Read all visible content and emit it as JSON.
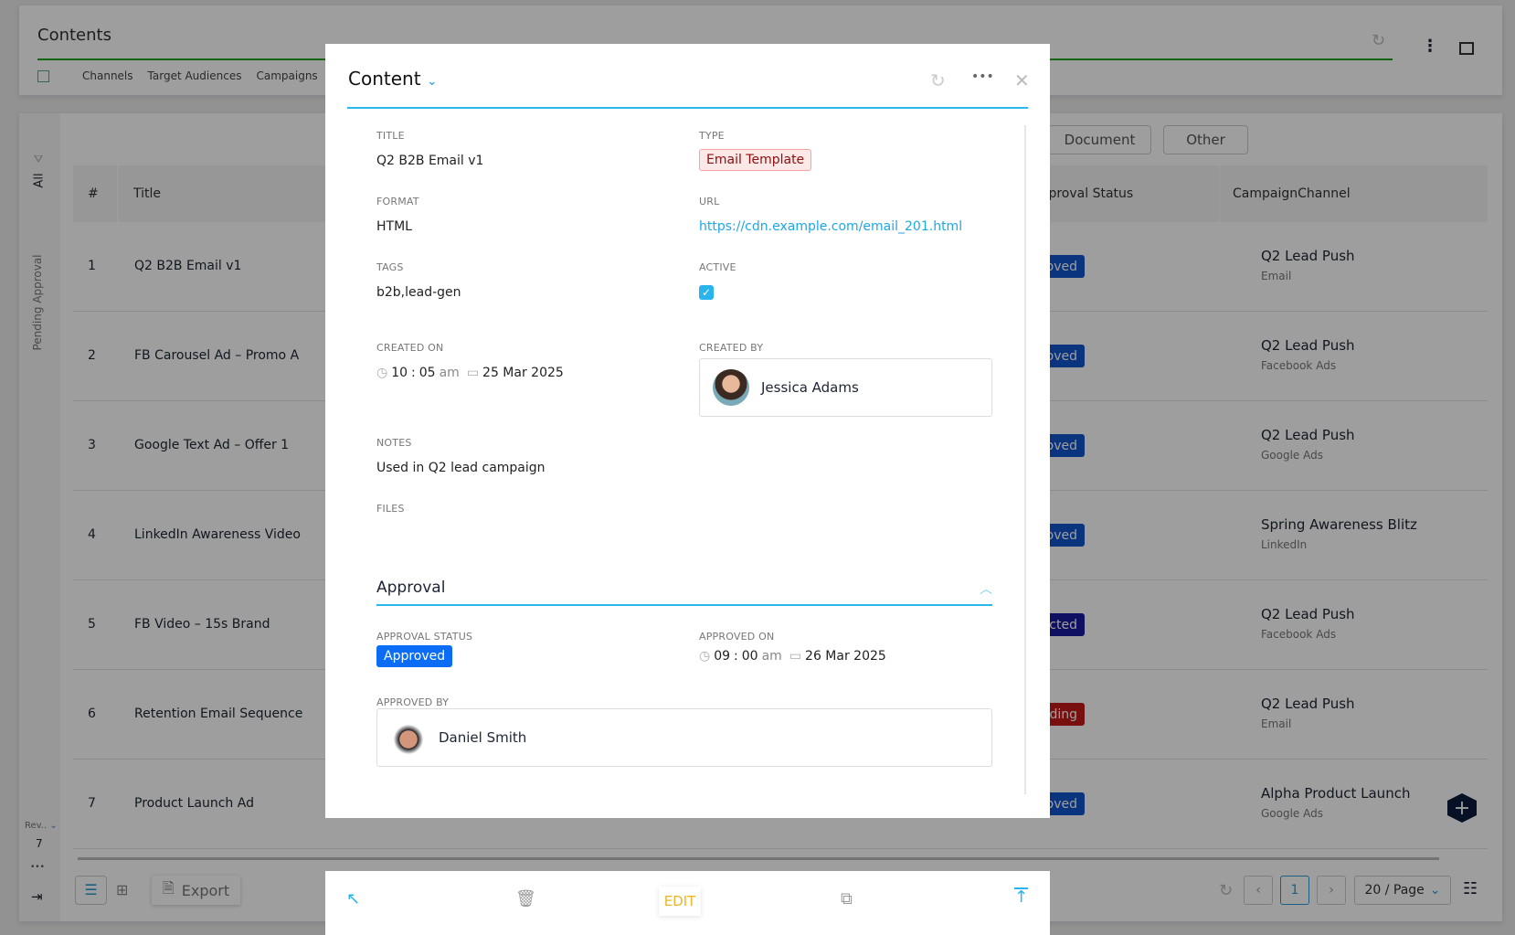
{
  "header": {
    "title": "Contents",
    "tabs": [
      "Channels",
      "Target Audiences",
      "Campaigns"
    ]
  },
  "filters": {
    "all": "All",
    "pending": "Pending Approval",
    "buttons": [
      "Document",
      "Other"
    ]
  },
  "table": {
    "columns": [
      "#",
      "Title",
      "Approval Status",
      "CampaignChannel"
    ],
    "rows": [
      {
        "n": "1",
        "title": "Q2 B2B Email v1",
        "status": "Approved",
        "campaign": "Q2 Lead Push",
        "channel": "Email"
      },
      {
        "n": "2",
        "title": "FB Carousel Ad – Promo A",
        "status": "Approved",
        "campaign": "Q2 Lead Push",
        "channel": "Facebook Ads"
      },
      {
        "n": "3",
        "title": "Google Text Ad – Offer 1",
        "status": "Approved",
        "campaign": "Q2 Lead Push",
        "channel": "Google Ads"
      },
      {
        "n": "4",
        "title": "LinkedIn Awareness Video",
        "status": "Approved",
        "campaign": "Spring Awareness Blitz",
        "channel": "LinkedIn"
      },
      {
        "n": "5",
        "title": "FB Video – 15s Brand",
        "status": "Rejected",
        "campaign": "Q2 Lead Push",
        "channel": "Facebook Ads"
      },
      {
        "n": "6",
        "title": "Retention Email Sequence",
        "status": "Pending",
        "campaign": "Q2 Lead Push",
        "channel": "Email"
      },
      {
        "n": "7",
        "title": "Product Launch Ad",
        "status": "Approved",
        "campaign": "Alpha Product Launch",
        "channel": "Google Ads"
      }
    ]
  },
  "status_colors": {
    "Approved": "#1155cc",
    "Rejected": "#1a1aa0",
    "Pending": "#c41a1a"
  },
  "sidebar": {
    "rev_label": "Rev..",
    "rev_count": "7",
    "more": "•••"
  },
  "footer": {
    "export": "Export",
    "page": "1",
    "page_size": "20 / Page"
  },
  "modal": {
    "title": "Content",
    "fields": {
      "title_label": "TITLE",
      "title": "Q2 B2B Email v1",
      "type_label": "TYPE",
      "type": "Email Template",
      "format_label": "FORMAT",
      "format": "HTML",
      "url_label": "URL",
      "url": "https://cdn.example.com/email_201.html",
      "tags_label": "TAGS",
      "tags": "b2b,lead-gen",
      "active_label": "ACTIVE",
      "active": true,
      "created_on_label": "CREATED ON",
      "created_hour": "10",
      "created_min": "05",
      "created_ampm": "am",
      "created_date": "25 Mar 2025",
      "created_by_label": "CREATED BY",
      "created_by": "Jessica Adams",
      "notes_label": "NOTES",
      "notes": "Used in Q2 lead campaign",
      "files_label": "FILES"
    },
    "approval": {
      "heading": "Approval",
      "status_label": "APPROVAL STATUS",
      "status": "Approved",
      "approved_on_label": "APPROVED ON",
      "hour": "09",
      "min": "00",
      "ampm": "am",
      "date": "26 Mar 2025",
      "approved_by_label": "APPROVED BY",
      "approved_by": "Daniel Smith"
    },
    "actions": {
      "edit": "EDIT"
    }
  }
}
